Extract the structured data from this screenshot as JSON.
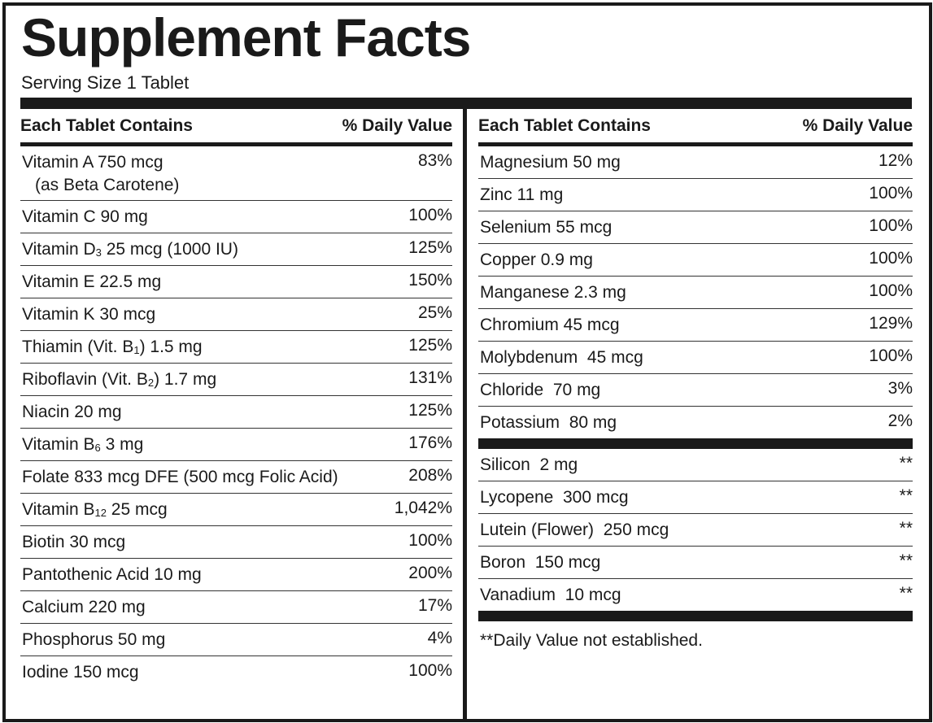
{
  "header": {
    "title": "Supplement Facts",
    "serving": "Serving Size 1 Tablet"
  },
  "columns": [
    {
      "heading": "Each Tablet Contains",
      "dv_heading": "% Daily Value",
      "sections": [
        {
          "rows": [
            {
              "name": "Vitamin A 750 mcg",
              "note": "(as Beta Carotene)",
              "dv": "83%"
            },
            {
              "name": "Vitamin C 90 mg",
              "dv": "100%"
            },
            {
              "name": [
                "Vitamin D",
                "3",
                " 25 mcg (1000 IU)"
              ],
              "dv": "125%"
            },
            {
              "name": "Vitamin E 22.5 mg",
              "dv": "150%"
            },
            {
              "name": "Vitamin K 30 mcg",
              "dv": "25%"
            },
            {
              "name": [
                "Thiamin (Vit. B",
                "1",
                ") 1.5 mg"
              ],
              "dv": "125%"
            },
            {
              "name": [
                "Riboflavin (Vit. B",
                "2",
                ") 1.7 mg"
              ],
              "dv": "131%"
            },
            {
              "name": "Niacin 20 mg",
              "dv": "125%"
            },
            {
              "name": [
                "Vitamin B",
                "6",
                " 3 mg"
              ],
              "dv": "176%"
            },
            {
              "name": "Folate 833 mcg DFE (500 mcg Folic Acid)",
              "dv": "208%"
            },
            {
              "name": [
                "Vitamin B",
                "12",
                " 25 mcg"
              ],
              "dv": "1,042%"
            },
            {
              "name": "Biotin 30 mcg",
              "dv": "100%"
            },
            {
              "name": "Pantothenic Acid 10 mg",
              "dv": "200%"
            },
            {
              "name": "Calcium 220 mg",
              "dv": "17%"
            },
            {
              "name": "Phosphorus 50 mg",
              "dv": "4%"
            },
            {
              "name": "Iodine 150 mcg",
              "dv": "100%"
            }
          ]
        }
      ]
    },
    {
      "heading": "Each Tablet Contains",
      "dv_heading": "% Daily Value",
      "sections": [
        {
          "rows": [
            {
              "name": "Magnesium 50 mg",
              "dv": "12%"
            },
            {
              "name": "Zinc 11 mg",
              "dv": "100%"
            },
            {
              "name": "Selenium 55 mcg",
              "dv": "100%"
            },
            {
              "name": "Copper 0.9 mg",
              "dv": "100%"
            },
            {
              "name": "Manganese 2.3 mg",
              "dv": "100%"
            },
            {
              "name": "Chromium 45 mcg",
              "dv": "129%"
            },
            {
              "name": "Molybdenum  45 mcg",
              "dv": "100%"
            },
            {
              "name": "Chloride  70 mg",
              "dv": "3%"
            },
            {
              "name": "Potassium  80 mg",
              "dv": "2%"
            }
          ]
        },
        {
          "rows": [
            {
              "name": "Silicon  2 mg",
              "dv": "**"
            },
            {
              "name": "Lycopene  300 mcg",
              "dv": "**"
            },
            {
              "name": "Lutein (Flower)  250 mcg",
              "dv": "**"
            },
            {
              "name": "Boron  150 mcg",
              "dv": "**"
            },
            {
              "name": "Vanadium  10 mcg",
              "dv": "**"
            }
          ]
        }
      ],
      "footnote": "**Daily Value not established."
    }
  ]
}
